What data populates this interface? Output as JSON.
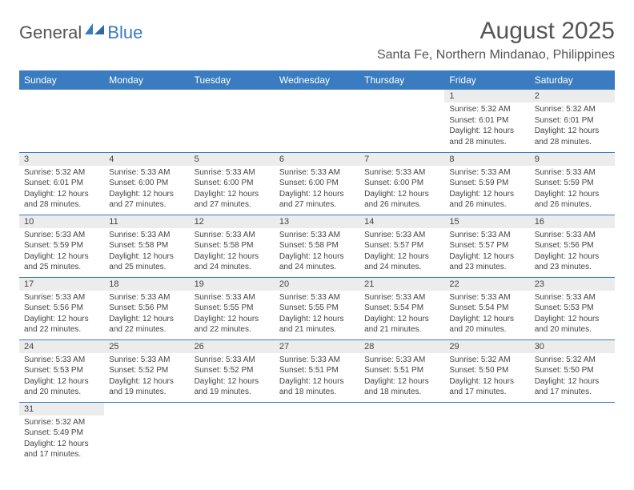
{
  "logo": {
    "text1": "General",
    "text2": "Blue"
  },
  "title": "August 2025",
  "location": "Santa Fe, Northern Mindanao, Philippines",
  "colors": {
    "header_bg": "#3a7cbf",
    "daynum_bg": "#ececec",
    "text": "#444444"
  },
  "day_headers": [
    "Sunday",
    "Monday",
    "Tuesday",
    "Wednesday",
    "Thursday",
    "Friday",
    "Saturday"
  ],
  "weeks": [
    [
      null,
      null,
      null,
      null,
      null,
      {
        "n": "1",
        "sr": "5:32 AM",
        "ss": "6:01 PM",
        "dl": "12 hours and 28 minutes."
      },
      {
        "n": "2",
        "sr": "5:32 AM",
        "ss": "6:01 PM",
        "dl": "12 hours and 28 minutes."
      }
    ],
    [
      {
        "n": "3",
        "sr": "5:32 AM",
        "ss": "6:01 PM",
        "dl": "12 hours and 28 minutes."
      },
      {
        "n": "4",
        "sr": "5:33 AM",
        "ss": "6:00 PM",
        "dl": "12 hours and 27 minutes."
      },
      {
        "n": "5",
        "sr": "5:33 AM",
        "ss": "6:00 PM",
        "dl": "12 hours and 27 minutes."
      },
      {
        "n": "6",
        "sr": "5:33 AM",
        "ss": "6:00 PM",
        "dl": "12 hours and 27 minutes."
      },
      {
        "n": "7",
        "sr": "5:33 AM",
        "ss": "6:00 PM",
        "dl": "12 hours and 26 minutes."
      },
      {
        "n": "8",
        "sr": "5:33 AM",
        "ss": "5:59 PM",
        "dl": "12 hours and 26 minutes."
      },
      {
        "n": "9",
        "sr": "5:33 AM",
        "ss": "5:59 PM",
        "dl": "12 hours and 26 minutes."
      }
    ],
    [
      {
        "n": "10",
        "sr": "5:33 AM",
        "ss": "5:59 PM",
        "dl": "12 hours and 25 minutes."
      },
      {
        "n": "11",
        "sr": "5:33 AM",
        "ss": "5:58 PM",
        "dl": "12 hours and 25 minutes."
      },
      {
        "n": "12",
        "sr": "5:33 AM",
        "ss": "5:58 PM",
        "dl": "12 hours and 24 minutes."
      },
      {
        "n": "13",
        "sr": "5:33 AM",
        "ss": "5:58 PM",
        "dl": "12 hours and 24 minutes."
      },
      {
        "n": "14",
        "sr": "5:33 AM",
        "ss": "5:57 PM",
        "dl": "12 hours and 24 minutes."
      },
      {
        "n": "15",
        "sr": "5:33 AM",
        "ss": "5:57 PM",
        "dl": "12 hours and 23 minutes."
      },
      {
        "n": "16",
        "sr": "5:33 AM",
        "ss": "5:56 PM",
        "dl": "12 hours and 23 minutes."
      }
    ],
    [
      {
        "n": "17",
        "sr": "5:33 AM",
        "ss": "5:56 PM",
        "dl": "12 hours and 22 minutes."
      },
      {
        "n": "18",
        "sr": "5:33 AM",
        "ss": "5:56 PM",
        "dl": "12 hours and 22 minutes."
      },
      {
        "n": "19",
        "sr": "5:33 AM",
        "ss": "5:55 PM",
        "dl": "12 hours and 22 minutes."
      },
      {
        "n": "20",
        "sr": "5:33 AM",
        "ss": "5:55 PM",
        "dl": "12 hours and 21 minutes."
      },
      {
        "n": "21",
        "sr": "5:33 AM",
        "ss": "5:54 PM",
        "dl": "12 hours and 21 minutes."
      },
      {
        "n": "22",
        "sr": "5:33 AM",
        "ss": "5:54 PM",
        "dl": "12 hours and 20 minutes."
      },
      {
        "n": "23",
        "sr": "5:33 AM",
        "ss": "5:53 PM",
        "dl": "12 hours and 20 minutes."
      }
    ],
    [
      {
        "n": "24",
        "sr": "5:33 AM",
        "ss": "5:53 PM",
        "dl": "12 hours and 20 minutes."
      },
      {
        "n": "25",
        "sr": "5:33 AM",
        "ss": "5:52 PM",
        "dl": "12 hours and 19 minutes."
      },
      {
        "n": "26",
        "sr": "5:33 AM",
        "ss": "5:52 PM",
        "dl": "12 hours and 19 minutes."
      },
      {
        "n": "27",
        "sr": "5:33 AM",
        "ss": "5:51 PM",
        "dl": "12 hours and 18 minutes."
      },
      {
        "n": "28",
        "sr": "5:33 AM",
        "ss": "5:51 PM",
        "dl": "12 hours and 18 minutes."
      },
      {
        "n": "29",
        "sr": "5:32 AM",
        "ss": "5:50 PM",
        "dl": "12 hours and 17 minutes."
      },
      {
        "n": "30",
        "sr": "5:32 AM",
        "ss": "5:50 PM",
        "dl": "12 hours and 17 minutes."
      }
    ],
    [
      {
        "n": "31",
        "sr": "5:32 AM",
        "ss": "5:49 PM",
        "dl": "12 hours and 17 minutes."
      },
      null,
      null,
      null,
      null,
      null,
      null
    ]
  ],
  "labels": {
    "sunrise": "Sunrise:",
    "sunset": "Sunset:",
    "daylight": "Daylight:"
  }
}
